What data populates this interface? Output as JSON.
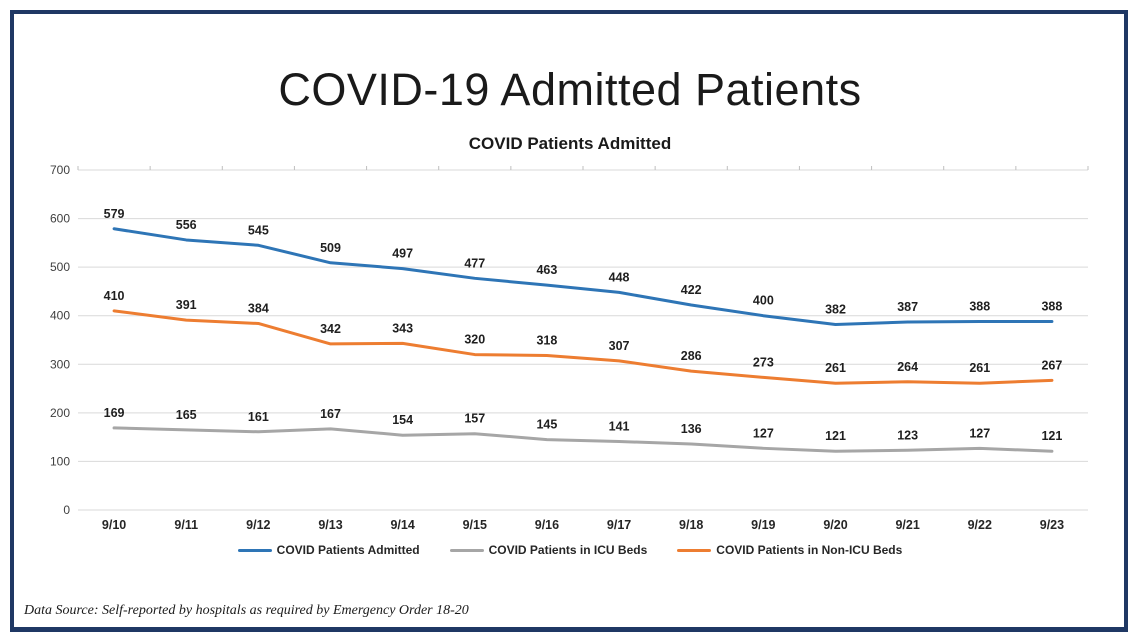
{
  "page": {
    "title": "COVID-19 Admitted Patients",
    "footer": "Data Source: Self-reported by hospitals as required by Emergency Order 18-20",
    "border_color": "#1F3864"
  },
  "chart_data": {
    "type": "line",
    "title": "COVID Patients Admitted",
    "categories": [
      "9/10",
      "9/11",
      "9/12",
      "9/13",
      "9/14",
      "9/15",
      "9/16",
      "9/17",
      "9/18",
      "9/19",
      "9/20",
      "9/21",
      "9/22",
      "9/23"
    ],
    "series": [
      {
        "name": "COVID Patients Admitted",
        "color": "#2E75B6",
        "values": [
          579,
          556,
          545,
          509,
          497,
          477,
          463,
          448,
          422,
          400,
          382,
          387,
          388,
          388
        ]
      },
      {
        "name": "COVID Patients in ICU Beds",
        "color": "#A6A6A6",
        "values": [
          169,
          165,
          161,
          167,
          154,
          157,
          145,
          141,
          136,
          127,
          121,
          123,
          127,
          121
        ]
      },
      {
        "name": "COVID Patients in Non-ICU Beds",
        "color": "#ED7D31",
        "values": [
          410,
          391,
          384,
          342,
          343,
          320,
          318,
          307,
          286,
          273,
          261,
          264,
          261,
          267
        ]
      }
    ],
    "ylim": [
      0,
      700
    ],
    "ytick_interval": 100,
    "grid": true,
    "gridline_color": "#D9D9D9",
    "tick_color": "#BFBFBF",
    "data_labels": true,
    "legend_position": "bottom"
  }
}
